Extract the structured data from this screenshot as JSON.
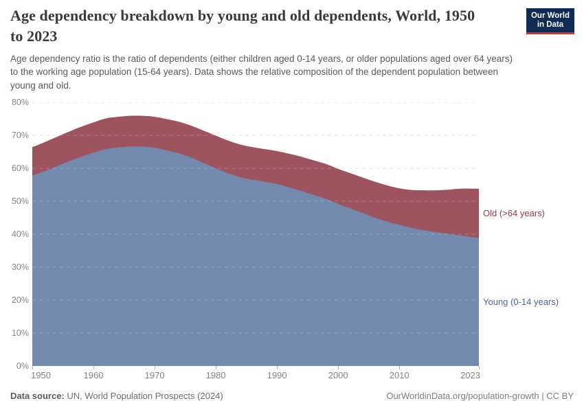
{
  "header": {
    "title_line1": "Age dependency breakdown by young and old dependents, World, 1950",
    "title_line2": "to 2023",
    "logo": {
      "line1": "Our World",
      "line2": "in Data"
    }
  },
  "subtitle": {
    "line1": "Age dependency ratio is the ratio of dependents (either children aged 0-14 years, or older populations aged over 64 years)",
    "line2": "to the working age population (15-64 years). Data shows the relative composition of the dependent population between",
    "line3": "young and old."
  },
  "chart_data": {
    "type": "area",
    "stacked": true,
    "title": "Age dependency breakdown by young and old dependents, World, 1950 to 2023",
    "xlabel": "",
    "ylabel": "",
    "xlim": [
      1950,
      2023
    ],
    "ylim": [
      0,
      80
    ],
    "yticks": [
      0,
      10,
      20,
      30,
      40,
      50,
      60,
      70,
      80
    ],
    "ytick_suffix": "%",
    "xticks": [
      1950,
      1960,
      1970,
      1980,
      1990,
      2000,
      2010,
      2023
    ],
    "grid": "dashed-horizontal",
    "legend_position": "inline-labels-right",
    "x": [
      1950,
      1952,
      1954,
      1956,
      1958,
      1960,
      1962,
      1964,
      1966,
      1968,
      1970,
      1972,
      1974,
      1976,
      1978,
      1980,
      1982,
      1984,
      1986,
      1988,
      1990,
      1992,
      1994,
      1996,
      1998,
      2000,
      2002,
      2004,
      2006,
      2008,
      2010,
      2012,
      2014,
      2016,
      2018,
      2020,
      2022,
      2023
    ],
    "series": [
      {
        "name": "Young (0-14 years)",
        "color": "#7389ad",
        "label_color": "#4a66a0",
        "values": [
          57.7,
          59.1,
          60.6,
          62.1,
          63.5,
          64.7,
          65.8,
          66.3,
          66.6,
          66.6,
          66.2,
          65.4,
          64.5,
          63.2,
          61.6,
          60.0,
          58.5,
          57.3,
          56.5,
          55.9,
          55.2,
          54.2,
          53.1,
          51.9,
          50.7,
          49.2,
          47.8,
          46.4,
          45.0,
          43.8,
          42.8,
          41.9,
          41.2,
          40.6,
          40.1,
          39.6,
          39.1,
          38.9
        ]
      },
      {
        "name": "Old (>64 years)",
        "color": "#9e545e",
        "label_color": "#8e3e4b",
        "values": [
          8.7,
          8.8,
          8.9,
          9.0,
          9.1,
          9.2,
          9.3,
          9.3,
          9.3,
          9.3,
          9.4,
          9.5,
          9.6,
          9.7,
          9.8,
          9.9,
          9.9,
          9.9,
          9.9,
          9.9,
          10.0,
          10.2,
          10.4,
          10.5,
          10.6,
          10.6,
          10.7,
          10.8,
          10.9,
          11.0,
          11.1,
          11.5,
          12.1,
          12.7,
          13.4,
          14.2,
          14.7,
          14.9
        ]
      }
    ]
  },
  "footer": {
    "source_label": "Data source:",
    "source_text": " UN, World Population Prospects (2024)",
    "link": "OurWorldinData.org/population-growth",
    "license": " | CC BY"
  },
  "colors": {
    "title": "#3a3a3a",
    "subtitle": "#5a5a5a",
    "axis_text": "#878787",
    "gridline": "#dcdcdc",
    "logo_bg": "#102c54",
    "logo_stripe": "#dc2e22"
  }
}
